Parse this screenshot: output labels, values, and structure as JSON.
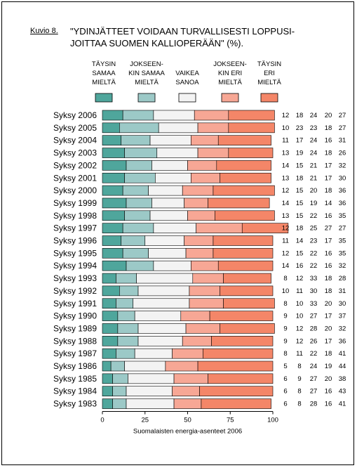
{
  "figure_label": "Kuvio 8.",
  "title_line1": "\"YDINJÄTTEET VOIDAAN TURVALLISESTI LOPPUSI-",
  "title_line2": "JOITTAA SUOMEN KALLIOPERÄÄN\" (%).",
  "colors": [
    "#4fa69c",
    "#9cc9c7",
    "#f3f3f3",
    "#f7a795",
    "#f48668"
  ],
  "chart_data": {
    "type": "bar",
    "orientation": "horizontal",
    "stacked": true,
    "title": "\"YDINJÄTTEET VOIDAAN TURVALLISESTI LOPPUSIJOITTAA SUOMEN KALLIOPERÄÄN\" (%).",
    "xlabel": "Suomalaisten energia-asenteet 2006",
    "xlim": [
      0,
      100
    ],
    "xticks": [
      0,
      25,
      50,
      75,
      100
    ],
    "legend_position": "top",
    "categories": [
      "Syksy 2006",
      "Syksy 2005",
      "Syksy 2004",
      "Syksy 2003",
      "Syksy 2002",
      "Syksy 2001",
      "Syksy 2000",
      "Syksy 1999",
      "Syksy 1998",
      "Syksy 1997",
      "Syksy 1996",
      "Syksy 1995",
      "Syksy 1994",
      "Syksy 1993",
      "Syksy 1992",
      "Syksy 1991",
      "Syksy 1990",
      "Syksy 1989",
      "Syksy 1988",
      "Syksy 1987",
      "Syksy 1986",
      "Syksy 1985",
      "Syksy 1984",
      "Syksy 1983"
    ],
    "series": [
      {
        "name": "TÄYSIN SAMAA MIELTÄ",
        "values": [
          12,
          10,
          11,
          13,
          14,
          13,
          12,
          14,
          13,
          12,
          11,
          12,
          14,
          8,
          10,
          8,
          9,
          9,
          9,
          8,
          5,
          6,
          6,
          6
        ]
      },
      {
        "name": "JOKSEENKIN SAMAA MIELTÄ",
        "values": [
          18,
          23,
          17,
          19,
          15,
          18,
          15,
          15,
          15,
          18,
          14,
          15,
          16,
          12,
          11,
          10,
          10,
          12,
          12,
          11,
          8,
          9,
          8,
          8
        ]
      },
      {
        "name": "VAIKEA SANOA",
        "values": [
          24,
          23,
          24,
          24,
          21,
          21,
          20,
          19,
          22,
          25,
          23,
          22,
          22,
          33,
          30,
          33,
          27,
          28,
          26,
          22,
          24,
          27,
          27,
          28
        ]
      },
      {
        "name": "JOKSEENKIN ERI MIELTÄ",
        "values": [
          20,
          18,
          16,
          18,
          17,
          17,
          18,
          14,
          16,
          27,
          17,
          16,
          16,
          18,
          18,
          20,
          17,
          20,
          17,
          18,
          19,
          20,
          16,
          16
        ]
      },
      {
        "name": "TÄYSIN ERI MIELTÄ",
        "values": [
          27,
          27,
          31,
          26,
          32,
          30,
          36,
          36,
          35,
          27,
          35,
          35,
          32,
          28,
          31,
          30,
          37,
          32,
          36,
          41,
          44,
          38,
          43,
          41
        ]
      }
    ],
    "legend": [
      [
        "TÄYSIN",
        "SAMAA",
        "MIELTÄ"
      ],
      [
        "JOKSEEN-",
        "KIN SAMAA",
        "MIELTÄ"
      ],
      [
        "VAIKEA",
        "SANOA"
      ],
      [
        "JOKSEEN-",
        "KIN ERI",
        "MIELTÄ"
      ],
      [
        "TÄYSIN",
        "ERI",
        "MIELTÄ"
      ]
    ]
  }
}
